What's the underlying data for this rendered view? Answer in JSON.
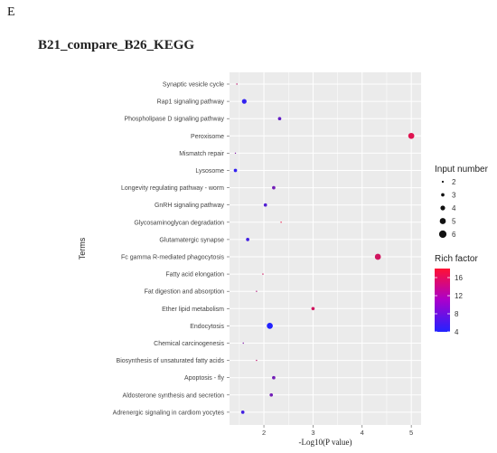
{
  "panel_letter": "E",
  "chart_data": {
    "type": "scatter",
    "title": "B21_compare_B26_KEGG",
    "xlabel": "-Log10(P value)",
    "ylabel": "Terms",
    "xticks": [
      2,
      3,
      4,
      5
    ],
    "xlim": [
      1.3,
      5.2
    ],
    "grid": true,
    "terms": [
      {
        "term": "Synaptic vesicle cycle",
        "x": 1.45,
        "input_number": 1,
        "rich_factor": 14
      },
      {
        "term": "Rap1 signaling pathway",
        "x": 1.6,
        "input_number": 4,
        "rich_factor": 5
      },
      {
        "term": "Phospholipase D signaling pathway",
        "x": 2.32,
        "input_number": 3,
        "rich_factor": 8
      },
      {
        "term": "Peroxisome",
        "x": 5.0,
        "input_number": 5,
        "rich_factor": 16
      },
      {
        "term": "Mismatch repair",
        "x": 1.42,
        "input_number": 1,
        "rich_factor": 10
      },
      {
        "term": "Lysosome",
        "x": 1.42,
        "input_number": 3,
        "rich_factor": 5
      },
      {
        "term": "Longevity regulating pathway - worm",
        "x": 2.2,
        "input_number": 3,
        "rich_factor": 9
      },
      {
        "term": "GnRH signaling pathway",
        "x": 2.03,
        "input_number": 3,
        "rich_factor": 7
      },
      {
        "term": "Glycosaminoglycan degradation",
        "x": 2.35,
        "input_number": 1,
        "rich_factor": 17
      },
      {
        "term": "Glutamatergic synapse",
        "x": 1.67,
        "input_number": 3,
        "rich_factor": 6
      },
      {
        "term": "Fc gamma R-mediated phagocytosis",
        "x": 4.32,
        "input_number": 5,
        "rich_factor": 15
      },
      {
        "term": "Fatty acid elongation",
        "x": 1.98,
        "input_number": 1,
        "rich_factor": 15
      },
      {
        "term": "Fat digestion and absorption",
        "x": 1.85,
        "input_number": 1,
        "rich_factor": 13
      },
      {
        "term": "Ether lipid metabolism",
        "x": 3.0,
        "input_number": 3,
        "rich_factor": 15
      },
      {
        "term": "Endocytosis",
        "x": 2.12,
        "input_number": 5,
        "rich_factor": 4
      },
      {
        "term": "Chemical carcinogenesis",
        "x": 1.58,
        "input_number": 1,
        "rich_factor": 10
      },
      {
        "term": "Biosynthesis of unsaturated fatty acids",
        "x": 1.85,
        "input_number": 1,
        "rich_factor": 14
      },
      {
        "term": "Apoptosis - fly",
        "x": 2.2,
        "input_number": 3,
        "rich_factor": 9
      },
      {
        "term": "Aldosterone synthesis and secretion",
        "x": 2.15,
        "input_number": 3,
        "rich_factor": 9
      },
      {
        "term": "Adrenergic signaling in cardiom yocytes",
        "x": 1.57,
        "input_number": 3,
        "rich_factor": 6
      }
    ],
    "size_legend": {
      "title": "Input number",
      "values": [
        2,
        3,
        4,
        5,
        6
      ]
    },
    "color_legend": {
      "title": "Rich factor",
      "ticks": [
        16,
        12,
        8,
        4
      ],
      "range": [
        4,
        18
      ],
      "low_color": "#2222ff",
      "high_color": "#ff1133"
    },
    "panel_background": "#ebebeb",
    "gridline_color": "#ffffff"
  }
}
